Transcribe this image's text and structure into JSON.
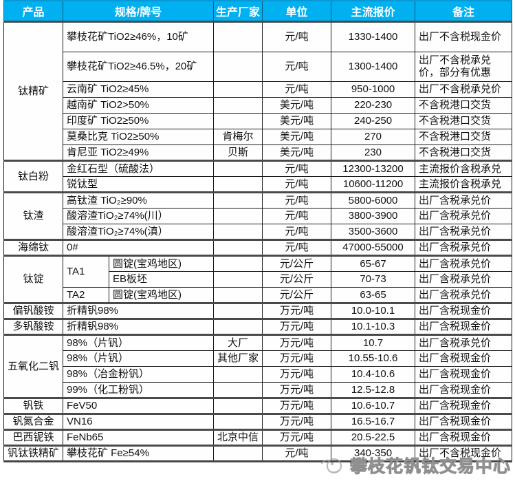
{
  "header": {
    "columns": [
      "产品",
      "规格/牌号",
      "生产厂家",
      "单位",
      "主流报价",
      "备注"
    ]
  },
  "colors": {
    "header_bg": "#00b0f0",
    "header_text": "#ffffff",
    "cell_border": "#1a1a1a",
    "group_border": "#4a4a4a",
    "watermark_gray": "#9e9e9e"
  },
  "groups": [
    {
      "product": "钛精矿",
      "rows": [
        {
          "spec": "攀枝花矿TiO2≥46%，10矿",
          "maker": "",
          "unit": "元/吨",
          "price": "1330-1400",
          "note": "出厂不含税现金价",
          "h": 44
        },
        {
          "spec": "攀枝花矿TiO2≥46.5%，20矿",
          "maker": "",
          "unit": "元/吨",
          "price": "1300-1400",
          "note": "出厂不含税承兑价，部分有优惠",
          "h": 43
        },
        {
          "spec": "云南矿 TiO2≥45%",
          "maker": "",
          "unit": "元/吨",
          "price": "950-1000",
          "note": "出厂不含税承兑价"
        },
        {
          "spec": "越南矿 TiO2>50%",
          "maker": "",
          "unit": "美元/吨",
          "price": "220-230",
          "note": "不含税港口交货"
        },
        {
          "spec": "印度矿 TiO2≥50%",
          "maker": "",
          "unit": "美元/吨",
          "price": "240-250",
          "note": "不含税港口交货"
        },
        {
          "spec": "莫桑比克 TiO2≥50%",
          "maker": "肯梅尔",
          "unit": "美元/吨",
          "price": "270",
          "note": "不含税港口交货"
        },
        {
          "spec": "肯尼亚 TiO2≥49%",
          "maker": "贝斯",
          "unit": "美元/吨",
          "price": "230",
          "note": "不含税港口交货"
        }
      ]
    },
    {
      "product": "钛白粉",
      "rows": [
        {
          "spec": "金红石型（硫酸法）",
          "maker": "",
          "unit": "元/吨",
          "price": "12300-13200",
          "note": "主流报价含税承兑"
        },
        {
          "spec": "锐钛型",
          "maker": "",
          "unit": "元/吨",
          "price": "10600-11200",
          "note": "主流报价含税承兑"
        }
      ]
    },
    {
      "product": "钛渣",
      "rows": [
        {
          "spec": "高钛渣 TiO₂≥90%",
          "maker": "",
          "unit": "元/吨",
          "price": "5800-6000",
          "note": "出厂含税承兑价"
        },
        {
          "spec": "酸溶渣TiO₂≥74%(川）",
          "maker": "",
          "unit": "元/吨",
          "price": "3800-3900",
          "note": "出厂含税承兑价"
        },
        {
          "spec": "酸溶渣TiO₂≥74%(滇）",
          "maker": "",
          "unit": "元/吨",
          "price": "3500-3600",
          "note": "出厂含税承兑价"
        }
      ]
    },
    {
      "product": "海绵钛",
      "rows": [
        {
          "spec": "0#",
          "maker": "",
          "unit": "元/吨",
          "price": "47000-55000",
          "note": "出厂含税承兑价"
        }
      ]
    },
    {
      "product": "钛锭",
      "rows": [
        {
          "grade": "TA1",
          "grade_span": 2,
          "spec": "圆锭(宝鸡地区)",
          "maker": "",
          "unit": "元/公斤",
          "price": "65-67",
          "note": "出厂含税承兑价"
        },
        {
          "grade": null,
          "spec": "EB板坯",
          "maker": "",
          "unit": "元/公斤",
          "price": "70-73",
          "note": "出厂含税承兑价"
        },
        {
          "grade": "TA2",
          "grade_span": 1,
          "spec": "圆锭(宝鸡地区)",
          "maker": "",
          "unit": "元/公斤",
          "price": "63-65",
          "note": "出厂含税承兑价"
        }
      ]
    },
    {
      "product": "偏钒酸铵",
      "rows": [
        {
          "spec": "折精钒98%",
          "maker": "",
          "unit": "万元/吨",
          "price": "10.0-10.1",
          "note": "出厂含税现金价"
        }
      ]
    },
    {
      "product": "多钒酸铵",
      "rows": [
        {
          "spec": "折精钒98%",
          "maker": "",
          "unit": "万元/吨",
          "price": "10.1-10.3",
          "note": "出厂含税现金价"
        }
      ]
    },
    {
      "product": "五氧化二钒",
      "rows": [
        {
          "spec": "98%（片钒）",
          "maker": "大厂",
          "unit": "万元/吨",
          "price": "10.7",
          "note": "出厂含税承兑价"
        },
        {
          "spec": "98%（片钒）",
          "maker": "其他厂家",
          "unit": "万元/吨",
          "price": "10.55-10.6",
          "note": "出厂含税现金价"
        },
        {
          "spec": "98%（冶金粉钒）",
          "maker": "",
          "unit": "万元/吨",
          "price": "10.4-10.6",
          "note": "出厂含税现金价"
        },
        {
          "spec": "99%（化工粉钒）",
          "maker": "",
          "unit": "万元/吨",
          "price": "12.5-12.8",
          "note": "出厂含税现金价"
        }
      ]
    },
    {
      "product": "钒铁",
      "rows": [
        {
          "spec": "FeV50",
          "maker": "",
          "unit": "万元/吨",
          "price": "10.6-10.7",
          "note": "出厂含税现金价"
        }
      ]
    },
    {
      "product": "钒氮合金",
      "rows": [
        {
          "spec": "VN16",
          "maker": "",
          "unit": "万元/吨",
          "price": "16.5-16.7",
          "note": "出厂含税现金价"
        }
      ]
    },
    {
      "product": "巴西铌铁",
      "rows": [
        {
          "spec": "FeNb65",
          "maker": "北京中信",
          "unit": "万元/吨",
          "price": "20.5-22.5",
          "note": "出厂含税现金价"
        }
      ]
    },
    {
      "product": "钒钛铁精矿",
      "rows": [
        {
          "spec": "攀枝花矿 Fe≥54%",
          "maker": "",
          "unit": "元/吨",
          "price": "340-350",
          "note": "出厂不含税现金价"
        }
      ]
    }
  ],
  "watermark": {
    "text": "攀枝花钒钛交易中心"
  }
}
